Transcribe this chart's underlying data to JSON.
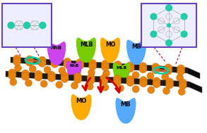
{
  "bg_color": "#ffffff",
  "sheet_color": "#1a1a1a",
  "sheet_edge": "#3a3a3a",
  "sheet_side_color": "#0d0d0d",
  "sphere_color": "#e8820a",
  "sphere_edge": "#c06800",
  "inset_bg": "#eeeeff",
  "inset_border": "#6644bb",
  "node_color": "#22ccaa",
  "bond_color": "#bbbbbb",
  "bond_color2": "#999999",
  "dye_RhB": "#cc44ee",
  "dye_MLB": "#77cc00",
  "dye_MO": "#ffaa00",
  "dye_MB": "#55aaff",
  "arrow_color": "#cc0000",
  "ellipse_color": "#00ccaa",
  "hatch_color": "#cc6633",
  "dashed_color": "#aa0044"
}
